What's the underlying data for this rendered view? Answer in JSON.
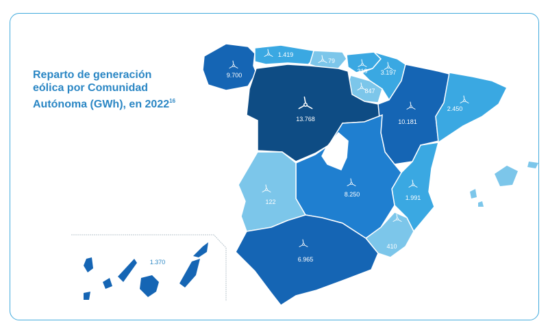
{
  "title": {
    "text": "Reparto de generación eólica por Comunidad Autónoma (GWh), en 2022",
    "footnote": "16"
  },
  "colors": {
    "darkest": "#0e4c84",
    "dark": "#1565b4",
    "mid": "#1f7fd0",
    "light": "#3aa8e2",
    "lightest": "#7cc6ea",
    "frame": "#3fa9dc",
    "title": "#2a86c4"
  },
  "icon": "wind-turbine-icon",
  "regions": [
    {
      "id": "galicia",
      "value": "9.700"
    },
    {
      "id": "asturias",
      "value": "1.419"
    },
    {
      "id": "cantabria",
      "value": "79"
    },
    {
      "id": "pais-vasco",
      "value": "319"
    },
    {
      "id": "navarra",
      "value": "3.197"
    },
    {
      "id": "la-rioja",
      "value": "847"
    },
    {
      "id": "castilla-y-leon",
      "value": "13.768"
    },
    {
      "id": "aragon",
      "value": "10.181"
    },
    {
      "id": "cataluna",
      "value": "2.450"
    },
    {
      "id": "extremadura",
      "value": "122"
    },
    {
      "id": "castilla-la-mancha",
      "value": "8.250"
    },
    {
      "id": "comunidad-valenciana",
      "value": "1.991"
    },
    {
      "id": "murcia",
      "value": "410"
    },
    {
      "id": "andalucia",
      "value": "6.965"
    },
    {
      "id": "canarias",
      "value": "1.370"
    }
  ]
}
